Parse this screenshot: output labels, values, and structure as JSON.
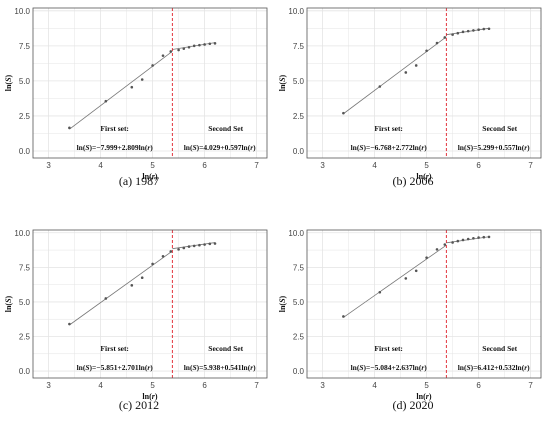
{
  "chart_data": [
    {
      "type": "scatter",
      "caption": "(a) 1987",
      "xlabel": "ln(r)",
      "ylabel": "ln(S)",
      "xlim": [
        2.7,
        7.2
      ],
      "ylim": [
        -0.5,
        10.2
      ],
      "xticks": [
        "3",
        "4",
        "5",
        "6",
        "7"
      ],
      "yticks": [
        "0.0",
        "2.5",
        "5.0",
        "7.5",
        "10.0"
      ],
      "breakpoint": 5.38,
      "points": [
        [
          3.4,
          1.65
        ],
        [
          4.1,
          3.55
        ],
        [
          4.6,
          4.55
        ],
        [
          4.8,
          5.1
        ],
        [
          5.0,
          6.1
        ],
        [
          5.2,
          6.8
        ],
        [
          5.35,
          7.1
        ],
        [
          5.5,
          7.2
        ],
        [
          5.6,
          7.3
        ],
        [
          5.7,
          7.4
        ],
        [
          5.8,
          7.5
        ],
        [
          5.9,
          7.55
        ],
        [
          6.0,
          7.6
        ],
        [
          6.1,
          7.65
        ],
        [
          6.2,
          7.68
        ]
      ],
      "fit1": {
        "intercept": -7.999,
        "slope": 2.809,
        "x": [
          3.4,
          5.38
        ]
      },
      "fit2": {
        "intercept": 4.029,
        "slope": 0.597,
        "x": [
          5.38,
          6.2
        ]
      },
      "annotations": {
        "first_title": "First set:",
        "first_eq": "ln(S)=−7.999+2.809ln(r)",
        "second_title": "Second Set",
        "second_eq": "ln(S)=4.029+0.597ln(r)"
      },
      "grid": true
    },
    {
      "type": "scatter",
      "caption": "(b) 2006",
      "xlabel": "ln(r)",
      "ylabel": "ln(S)",
      "xlim": [
        2.7,
        7.2
      ],
      "ylim": [
        -0.5,
        10.2
      ],
      "xticks": [
        "3",
        "4",
        "5",
        "6",
        "7"
      ],
      "yticks": [
        "0.0",
        "2.5",
        "5.0",
        "7.5",
        "10.0"
      ],
      "breakpoint": 5.38,
      "points": [
        [
          3.4,
          2.7
        ],
        [
          4.1,
          4.6
        ],
        [
          4.6,
          5.6
        ],
        [
          4.8,
          6.1
        ],
        [
          5.0,
          7.15
        ],
        [
          5.2,
          7.7
        ],
        [
          5.35,
          8.1
        ],
        [
          5.5,
          8.3
        ],
        [
          5.6,
          8.4
        ],
        [
          5.7,
          8.5
        ],
        [
          5.8,
          8.55
        ],
        [
          5.9,
          8.6
        ],
        [
          6.0,
          8.65
        ],
        [
          6.1,
          8.7
        ],
        [
          6.2,
          8.72
        ]
      ],
      "fit1": {
        "intercept": -6.768,
        "slope": 2.772,
        "x": [
          3.4,
          5.38
        ]
      },
      "fit2": {
        "intercept": 5.299,
        "slope": 0.557,
        "x": [
          5.38,
          6.2
        ]
      },
      "annotations": {
        "first_title": "First set:",
        "first_eq": "ln(S)=−6.768+2.772ln(r)",
        "second_title": "Second Set",
        "second_eq": "ln(S)=5.299+0.557ln(r)"
      },
      "grid": true
    },
    {
      "type": "scatter",
      "caption": "(c) 2012",
      "xlabel": "ln(r)",
      "ylabel": "ln(S)",
      "xlim": [
        2.7,
        7.2
      ],
      "ylim": [
        -0.5,
        10.2
      ],
      "xticks": [
        "3",
        "4",
        "5",
        "6",
        "7"
      ],
      "yticks": [
        "0.0",
        "2.5",
        "5.0",
        "7.5",
        "10.0"
      ],
      "breakpoint": 5.38,
      "points": [
        [
          3.4,
          3.4
        ],
        [
          4.1,
          5.25
        ],
        [
          4.6,
          6.2
        ],
        [
          4.8,
          6.75
        ],
        [
          5.0,
          7.75
        ],
        [
          5.2,
          8.3
        ],
        [
          5.35,
          8.65
        ],
        [
          5.5,
          8.8
        ],
        [
          5.6,
          8.9
        ],
        [
          5.7,
          9.0
        ],
        [
          5.8,
          9.05
        ],
        [
          5.9,
          9.1
        ],
        [
          6.0,
          9.15
        ],
        [
          6.1,
          9.2
        ],
        [
          6.2,
          9.22
        ]
      ],
      "fit1": {
        "intercept": -5.851,
        "slope": 2.701,
        "x": [
          3.4,
          5.38
        ]
      },
      "fit2": {
        "intercept": 5.938,
        "slope": 0.541,
        "x": [
          5.38,
          6.2
        ]
      },
      "annotations": {
        "first_title": "First set:",
        "first_eq": "ln(S)=−5.851+2.701ln(r)",
        "second_title": "Second Set",
        "second_eq": "ln(S)=5.938+0.541ln(r)"
      },
      "grid": true
    },
    {
      "type": "scatter",
      "caption": "(d) 2020",
      "xlabel": "ln(r)",
      "ylabel": "ln(S)",
      "xlim": [
        2.7,
        7.2
      ],
      "ylim": [
        -0.5,
        10.2
      ],
      "xticks": [
        "3",
        "4",
        "5",
        "6",
        "7"
      ],
      "yticks": [
        "0.0",
        "2.5",
        "5.0",
        "7.5",
        "10.0"
      ],
      "breakpoint": 5.38,
      "points": [
        [
          3.4,
          3.95
        ],
        [
          4.1,
          5.7
        ],
        [
          4.6,
          6.7
        ],
        [
          4.8,
          7.25
        ],
        [
          5.0,
          8.2
        ],
        [
          5.2,
          8.8
        ],
        [
          5.35,
          9.15
        ],
        [
          5.5,
          9.3
        ],
        [
          5.6,
          9.4
        ],
        [
          5.7,
          9.48
        ],
        [
          5.8,
          9.55
        ],
        [
          5.9,
          9.6
        ],
        [
          6.0,
          9.65
        ],
        [
          6.1,
          9.68
        ],
        [
          6.2,
          9.7
        ]
      ],
      "fit1": {
        "intercept": -5.084,
        "slope": 2.637,
        "x": [
          3.4,
          5.38
        ]
      },
      "fit2": {
        "intercept": 6.412,
        "slope": 0.532,
        "x": [
          5.38,
          6.2
        ]
      },
      "annotations": {
        "first_title": "First set:",
        "first_eq": "ln(S)=−5.084+2.637ln(r)",
        "second_title": "Second Set",
        "second_eq": "ln(S)=6.412+0.532ln(r)"
      },
      "grid": true
    }
  ],
  "colors": {
    "point": "#555555",
    "fit": "#777777",
    "breakpoint": "#e0202a",
    "grid": "#e4e4e4",
    "frame": "#555555"
  }
}
